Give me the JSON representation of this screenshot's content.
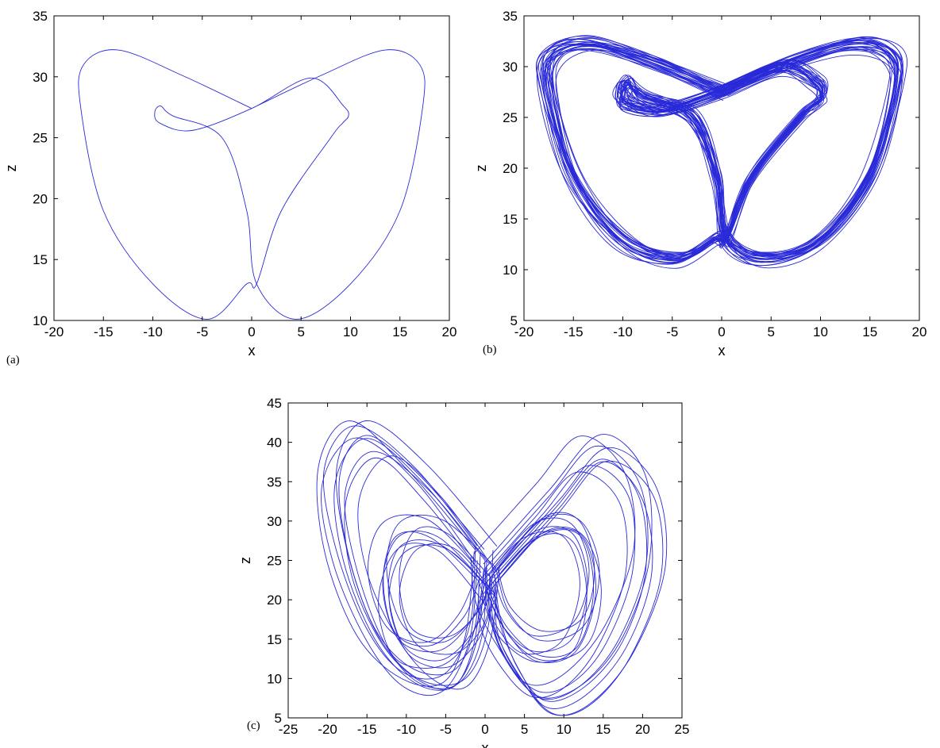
{
  "chart_data": [
    {
      "type": "line",
      "panel_label": "(a)",
      "xlabel": "x",
      "ylabel": "z",
      "xlim": [
        -20,
        20
      ],
      "ylim": [
        10,
        35
      ],
      "xticks": [
        "-20",
        "-15",
        "-10",
        "-5",
        "0",
        "5",
        "10",
        "15",
        "20"
      ],
      "yticks": [
        "10",
        "15",
        "20",
        "25",
        "30",
        "35"
      ],
      "grid": false,
      "series": [
        {
          "color": "#2a2ad8",
          "x": [
            0,
            7,
            13.5,
            17,
            17.3,
            15,
            10,
            4.5,
            0.5,
            -0.5,
            -3,
            -8,
            -9.2,
            -9.8,
            -9.3,
            -6,
            0,
            6,
            9.3,
            9.8,
            9.2,
            8,
            3,
            0.5,
            -0.5,
            -4.5,
            -10,
            -15,
            -17.3,
            -17,
            -13.5,
            -7,
            0
          ],
          "y": [
            27.4,
            30.1,
            32.2,
            31,
            27.5,
            19,
            13,
            10.1,
            13,
            19,
            25,
            26.8,
            27.6,
            27.1,
            26.2,
            25.6,
            27.4,
            29.9,
            27.6,
            26.8,
            26.2,
            25,
            19,
            13,
            13,
            10.1,
            13,
            19,
            27.5,
            31,
            32.2,
            30.1,
            27.4
          ]
        }
      ]
    },
    {
      "type": "line",
      "panel_label": "(b)",
      "xlabel": "x",
      "ylabel": "z",
      "xlim": [
        -20,
        20
      ],
      "ylim": [
        5,
        35
      ],
      "xticks": [
        "-20",
        "-15",
        "-10",
        "-5",
        "0",
        "5",
        "10",
        "15",
        "20"
      ],
      "yticks": [
        "5",
        "10",
        "15",
        "20",
        "25",
        "30",
        "35"
      ],
      "grid": false,
      "series": [
        {
          "color": "#2a2ad8",
          "x": [
            0,
            7,
            13.5,
            17.3,
            17.6,
            15,
            10,
            4.5,
            0.5,
            -0.5,
            -3,
            -8,
            -9.5,
            -10.2,
            -9.6,
            -6,
            0,
            6,
            9.6,
            10.2,
            9.5,
            8,
            3,
            0.5,
            -0.5,
            -4.5,
            -10,
            -15,
            -17.6,
            -17.3,
            -13.5,
            -7,
            0
          ],
          "y": [
            27.5,
            30.4,
            32.2,
            31,
            27.5,
            19,
            12.8,
            11,
            13,
            19,
            25,
            27,
            28.4,
            27.4,
            26.2,
            25.6,
            27.5,
            30,
            28.4,
            27,
            26.2,
            25,
            19,
            13,
            13,
            11,
            12.8,
            19,
            27.5,
            31,
            32.2,
            30.4,
            27.5
          ]
        }
      ]
    },
    {
      "type": "line",
      "panel_label": "(c)",
      "xlabel": "x",
      "ylabel": "z",
      "xlim": [
        -25,
        25
      ],
      "ylim": [
        5,
        45
      ],
      "xticks": [
        "-25",
        "-20",
        "-15",
        "-10",
        "-5",
        "0",
        "5",
        "10",
        "15",
        "20",
        "25"
      ],
      "yticks": [
        "5",
        "10",
        "15",
        "20",
        "25",
        "30",
        "35",
        "40",
        "45"
      ],
      "grid": false,
      "series": [
        {
          "color": "#2a2ad8",
          "x": [
            0,
            -8,
            -15,
            -19,
            -18,
            -14,
            -9,
            -4,
            -1,
            0
          ],
          "y": [
            25,
            35,
            40.5,
            35,
            25,
            15,
            9.5,
            9,
            15,
            25
          ]
        },
        {
          "color": "#2a2ad8",
          "x": [
            0,
            8,
            14,
            19.5,
            20.5,
            17,
            12,
            7,
            3,
            0.5,
            0
          ],
          "y": [
            24,
            33,
            39.5,
            35,
            25,
            15,
            9,
            7.5,
            12,
            18,
            24
          ]
        },
        {
          "color": "#2a2ad8",
          "x": [
            0,
            -6,
            -11,
            -13,
            -11,
            -6,
            -2,
            0
          ],
          "y": [
            22,
            28,
            28,
            22,
            15,
            13.5,
            17,
            22
          ]
        },
        {
          "color": "#2a2ad8",
          "x": [
            0,
            6,
            11,
            13,
            11,
            6,
            2,
            0
          ],
          "y": [
            22,
            28.5,
            28.5,
            22,
            15,
            13.5,
            17,
            22
          ]
        }
      ]
    }
  ]
}
